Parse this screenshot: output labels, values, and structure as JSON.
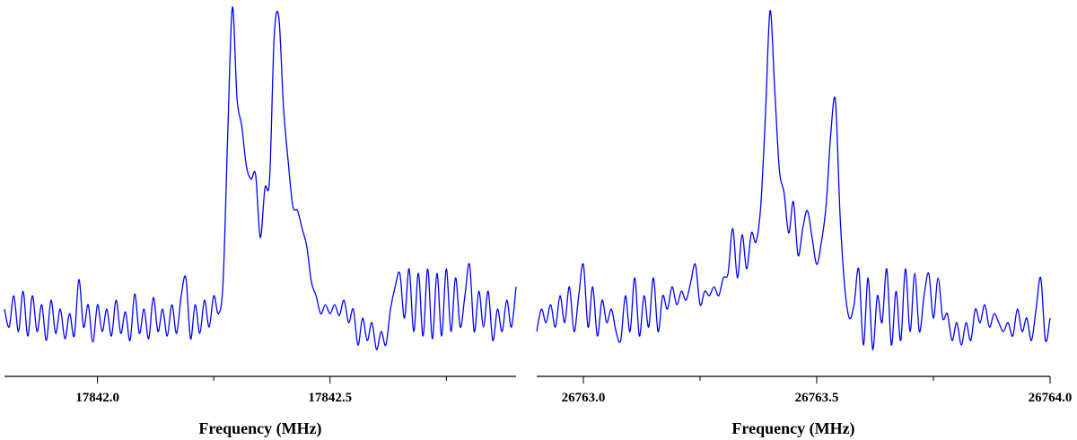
{
  "chart_data": [
    {
      "type": "line",
      "xlabel": "Frequency (MHz)",
      "color": "#0000ff",
      "xlim": [
        17841.8,
        17842.9
      ],
      "ylim": [
        0,
        415
      ],
      "xticks": [
        {
          "value": 17842,
          "label": "17842.0"
        },
        {
          "value": 17842.5,
          "label": "17842.5"
        }
      ],
      "xminorticks": [
        17842.25,
        17842.75
      ],
      "x": [
        17841.8,
        17841.81,
        17841.82,
        17841.83,
        17841.84,
        17841.85,
        17841.86,
        17841.87,
        17841.88,
        17841.89,
        17841.9,
        17841.91,
        17841.92,
        17841.93,
        17841.94,
        17841.95,
        17841.96,
        17841.97,
        17841.98,
        17841.99,
        17842.0,
        17842.01,
        17842.02,
        17842.03,
        17842.04,
        17842.05,
        17842.06,
        17842.07,
        17842.08,
        17842.09,
        17842.1,
        17842.11,
        17842.12,
        17842.13,
        17842.14,
        17842.15,
        17842.16,
        17842.17,
        17842.18,
        17842.19,
        17842.2,
        17842.21,
        17842.22,
        17842.23,
        17842.24,
        17842.25,
        17842.26,
        17842.27,
        17842.28,
        17842.29,
        17842.3,
        17842.31,
        17842.32,
        17842.33,
        17842.34,
        17842.35,
        17842.36,
        17842.37,
        17842.38,
        17842.39,
        17842.4,
        17842.41,
        17842.42,
        17842.43,
        17842.44,
        17842.45,
        17842.46,
        17842.47,
        17842.48,
        17842.49,
        17842.5,
        17842.51,
        17842.52,
        17842.53,
        17842.54,
        17842.55,
        17842.56,
        17842.57,
        17842.58,
        17842.59,
        17842.6,
        17842.61,
        17842.62,
        17842.63,
        17842.64,
        17842.65,
        17842.66,
        17842.67,
        17842.68,
        17842.69,
        17842.7,
        17842.71,
        17842.72,
        17842.73,
        17842.74,
        17842.75,
        17842.76,
        17842.77,
        17842.78,
        17842.79,
        17842.8,
        17842.81,
        17842.82,
        17842.83,
        17842.84,
        17842.85,
        17842.86,
        17842.87,
        17842.88,
        17842.89,
        17842.9
      ],
      "values": [
        75,
        55,
        90,
        50,
        95,
        45,
        90,
        50,
        80,
        40,
        85,
        48,
        75,
        42,
        70,
        45,
        108,
        55,
        80,
        38,
        80,
        50,
        75,
        45,
        85,
        48,
        72,
        40,
        92,
        48,
        75,
        42,
        88,
        50,
        75,
        45,
        80,
        48,
        90,
        110,
        42,
        80,
        48,
        85,
        55,
        90,
        70,
        105,
        270,
        412,
        310,
        280,
        235,
        220,
        225,
        155,
        210,
        220,
        380,
        400,
        300,
        240,
        190,
        185,
        165,
        145,
        105,
        90,
        70,
        80,
        70,
        80,
        68,
        85,
        60,
        75,
        35,
        65,
        40,
        60,
        30,
        50,
        35,
        75,
        100,
        115,
        65,
        120,
        50,
        115,
        45,
        120,
        42,
        115,
        45,
        120,
        50,
        110,
        55,
        90,
        125,
        50,
        95,
        55,
        95,
        40,
        75,
        50,
        85,
        55,
        100
      ]
    },
    {
      "type": "line",
      "xlabel": "Frequency (MHz)",
      "color": "#0000ff",
      "xlim": [
        26762.9,
        26764.0
      ],
      "ylim": [
        0,
        415
      ],
      "xticks": [
        {
          "value": 26763,
          "label": "26763.0"
        },
        {
          "value": 26763.5,
          "label": "26763.5"
        },
        {
          "value": 26764,
          "label": "26764.0"
        }
      ],
      "xminorticks": [
        26763.25,
        26763.75
      ],
      "x": [
        26762.9,
        26762.91,
        26762.92,
        26762.93,
        26762.94,
        26762.95,
        26762.96,
        26762.97,
        26762.98,
        26762.99,
        26763.0,
        26763.01,
        26763.02,
        26763.03,
        26763.04,
        26763.05,
        26763.06,
        26763.07,
        26763.08,
        26763.09,
        26763.1,
        26763.11,
        26763.12,
        26763.13,
        26763.14,
        26763.15,
        26763.16,
        26763.17,
        26763.18,
        26763.19,
        26763.2,
        26763.21,
        26763.22,
        26763.23,
        26763.24,
        26763.25,
        26763.26,
        26763.27,
        26763.28,
        26763.29,
        26763.3,
        26763.31,
        26763.32,
        26763.33,
        26763.34,
        26763.35,
        26763.36,
        26763.37,
        26763.38,
        26763.39,
        26763.4,
        26763.41,
        26763.42,
        26763.43,
        26763.44,
        26763.45,
        26763.46,
        26763.47,
        26763.48,
        26763.49,
        26763.5,
        26763.51,
        26763.52,
        26763.53,
        26763.54,
        26763.55,
        26763.56,
        26763.57,
        26763.58,
        26763.59,
        26763.6,
        26763.61,
        26763.62,
        26763.63,
        26763.64,
        26763.65,
        26763.66,
        26763.67,
        26763.68,
        26763.69,
        26763.7,
        26763.71,
        26763.72,
        26763.73,
        26763.74,
        26763.75,
        26763.76,
        26763.77,
        26763.78,
        26763.79,
        26763.8,
        26763.81,
        26763.82,
        26763.83,
        26763.84,
        26763.85,
        26763.86,
        26763.87,
        26763.88,
        26763.89,
        26763.9,
        26763.91,
        26763.92,
        26763.93,
        26763.94,
        26763.95,
        26763.96,
        26763.97,
        26763.98,
        26763.99,
        26764.0
      ],
      "values": [
        50,
        75,
        60,
        80,
        55,
        90,
        60,
        100,
        50,
        90,
        125,
        55,
        100,
        45,
        85,
        60,
        75,
        50,
        40,
        90,
        50,
        110,
        45,
        90,
        55,
        110,
        50,
        90,
        75,
        100,
        80,
        95,
        85,
        105,
        125,
        80,
        95,
        90,
        100,
        90,
        110,
        115,
        165,
        110,
        158,
        120,
        160,
        150,
        190,
        290,
        408,
        320,
        230,
        205,
        160,
        195,
        135,
        165,
        185,
        155,
        125,
        150,
        190,
        270,
        308,
        180,
        100,
        65,
        80,
        120,
        35,
        110,
        30,
        90,
        60,
        120,
        35,
        95,
        40,
        120,
        50,
        115,
        50,
        90,
        115,
        65,
        110,
        65,
        70,
        40,
        60,
        35,
        60,
        40,
        75,
        60,
        80,
        55,
        70,
        60,
        50,
        60,
        45,
        75,
        50,
        65,
        40,
        75,
        110,
        40,
        65
      ]
    }
  ]
}
